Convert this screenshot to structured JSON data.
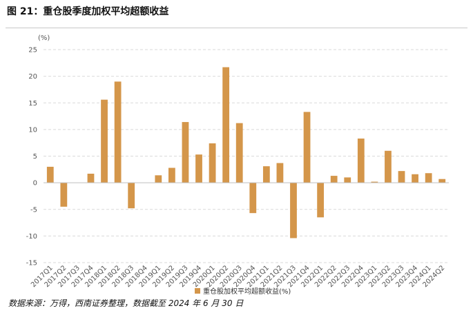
{
  "figure": {
    "title": "图 21：重仓股季度加权平均超额收益",
    "source": "数据来源：万得，西南证券整理，数据截至 2024 年 6 月 30 日"
  },
  "chart_data": {
    "type": "bar",
    "title": "",
    "xlabel": "",
    "ylabel": "(%)",
    "ylim": [
      -15,
      25
    ],
    "yticks": [
      25,
      20,
      15,
      10,
      5,
      0,
      -5,
      -10,
      -15
    ],
    "grid": true,
    "legend_position": "bottom-center",
    "categories": [
      "2017Q1",
      "2017Q2",
      "2017Q3",
      "2017Q4",
      "2018Q1",
      "2018Q2",
      "2018Q3",
      "2018Q4",
      "2019Q1",
      "2019Q2",
      "2019Q3",
      "2019Q4",
      "2020Q1",
      "2020Q2",
      "2020Q3",
      "2020Q4",
      "2021Q1",
      "2021Q2",
      "2021Q3",
      "2021Q4",
      "2022Q1",
      "2022Q2",
      "2022Q3",
      "2022Q4",
      "2023Q1",
      "2023Q2",
      "2023Q3",
      "2023Q4",
      "2024Q1",
      "2024Q2"
    ],
    "series": [
      {
        "name": "重仓股加权平均超额收益(%)",
        "color": "#d4964a",
        "values": [
          3.0,
          -4.5,
          0,
          1.7,
          15.6,
          19.0,
          -4.8,
          0,
          1.4,
          2.8,
          11.4,
          5.3,
          7.4,
          21.7,
          11.2,
          -5.7,
          3.1,
          3.7,
          -10.4,
          13.3,
          -6.5,
          1.3,
          1.0,
          8.3,
          0.2,
          6.0,
          2.2,
          1.6,
          1.8,
          0.7
        ]
      }
    ]
  }
}
